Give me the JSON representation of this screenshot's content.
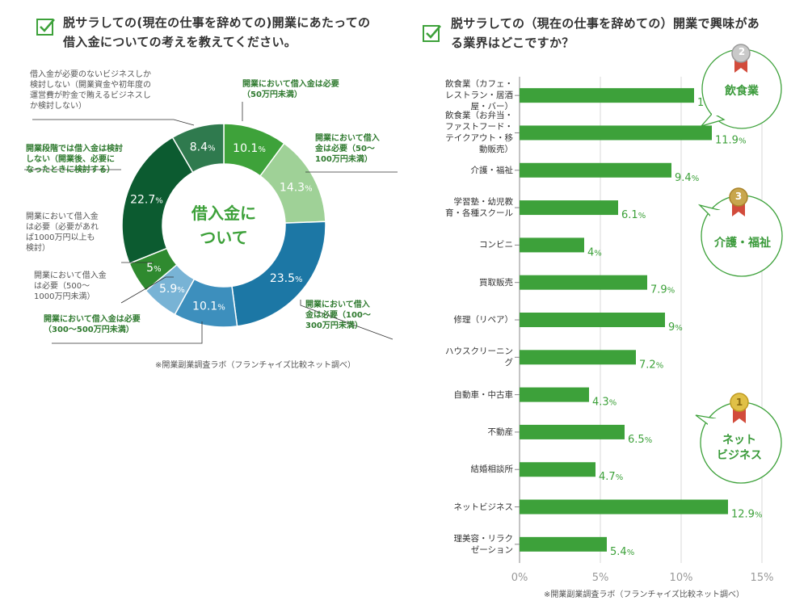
{
  "left": {
    "title_line1": "脱サラしての(現在の仕事を辞めての)開業にあたっての",
    "title_line2": "借入金についての考えを教えてください。",
    "note": "※開業副業調査ラボ（フランチャイズ比較ネット調べ）",
    "center_line1": "借入金に",
    "center_line2": "ついて"
  },
  "right": {
    "title_line1": "脱サラしての（現在の仕事を辞めての）開業で興味があ",
    "title_line2": "る業界はどこですか？",
    "note": "※開業副業調査ラボ（フランチャイズ比較ネット調べ）",
    "badges": [
      {
        "rank": "2",
        "label": "飲食業"
      },
      {
        "rank": "3",
        "label": "介護・福祉"
      },
      {
        "rank": "1",
        "label_line1": "ネット",
        "label_line2": "ビジネス"
      }
    ]
  },
  "chart_data": [
    {
      "type": "pie",
      "title": "借入金について",
      "unit": "%",
      "slices": [
        {
          "value": 10.1,
          "label": "10.1",
          "color": "#3ea23a",
          "desc": [
            "開業において借入金は必要",
            "（50万円未満）"
          ]
        },
        {
          "value": 14.3,
          "label": "14.3",
          "color": "#9fd197",
          "desc": [
            "開業において借入",
            "金は必要（50〜",
            "100万円未満）"
          ]
        },
        {
          "value": 23.5,
          "label": "23.5",
          "color": "#1c77a5",
          "desc": [
            "開業において借入",
            "金は必要（100〜",
            "300万円未満）"
          ]
        },
        {
          "value": 10.1,
          "label": "10.1",
          "color": "#3d8fbd",
          "desc": [
            "開業において借入金は必要",
            "（300〜500万円未満）"
          ]
        },
        {
          "value": 5.9,
          "label": "5.9",
          "color": "#78b3d5",
          "desc": [
            "開業において借入金",
            "は必要（500〜",
            "1000万円未満）"
          ]
        },
        {
          "value": 5,
          "label": "5",
          "color": "#2f8a2f",
          "desc": [
            "開業において借入金",
            "は必要（必要があれ",
            "ば1000万円以上も",
            "検討）"
          ]
        },
        {
          "value": 22.7,
          "label": "22.7",
          "color": "#0c5b30",
          "desc": [
            "開業段階では借入金は検討",
            "しない（開業後、必要に",
            "なったときに検討する）"
          ]
        },
        {
          "value": 8.4,
          "label": "8.4",
          "color": "#2f7a4e",
          "desc": [
            "借入金が必要のないビジネスしか",
            "検討しない（開業資金や初年度の",
            "運営費が貯金で賄えるビジネスし",
            "か検討しない）"
          ]
        }
      ]
    },
    {
      "type": "bar",
      "orientation": "horizontal",
      "unit": "%",
      "xlim": [
        0,
        15
      ],
      "ticks": [
        "0%",
        "5%",
        "10%",
        "15%"
      ],
      "grid": true,
      "bar_color": "#3da13a",
      "categories": [
        [
          "飲食業（カフェ・",
          "レストラン・居酒",
          "屋・バー）"
        ],
        [
          "飲食業（お弁当・",
          "ファストフード・",
          "テイクアウト・移",
          "動販売）"
        ],
        [
          "介護・福祉"
        ],
        [
          "学習塾・幼児教",
          "育・各種スクール"
        ],
        [
          "コンビニ"
        ],
        [
          "買取販売"
        ],
        [
          "修理（リペア）"
        ],
        [
          "ハウスクリーニン",
          "グ"
        ],
        [
          "自動車・中古車"
        ],
        [
          "不動産"
        ],
        [
          "結婚相談所"
        ],
        [
          "ネットビジネス"
        ],
        [
          "理美容・リラク",
          "ゼーション"
        ]
      ],
      "values": [
        10.8,
        11.9,
        9.4,
        6.1,
        4,
        7.9,
        9,
        7.2,
        4.3,
        6.5,
        4.7,
        12.9,
        5.4
      ]
    }
  ]
}
